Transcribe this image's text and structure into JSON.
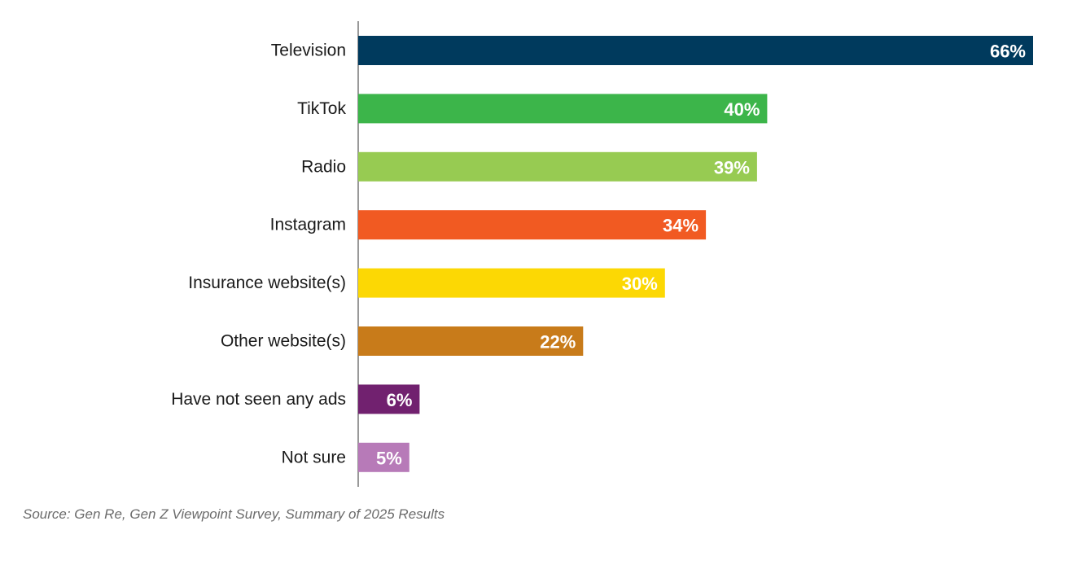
{
  "chart_data": {
    "type": "bar",
    "orientation": "horizontal",
    "categories": [
      "Television",
      "TikTok",
      "Radio",
      "Instagram",
      "Insurance website(s)",
      "Other website(s)",
      "Have not seen any ads",
      "Not sure"
    ],
    "values": [
      66,
      40,
      39,
      34,
      30,
      22,
      6,
      5
    ],
    "value_labels": [
      "66%",
      "40%",
      "39%",
      "34%",
      "30%",
      "22%",
      "6%",
      "5%"
    ],
    "colors": [
      "#003a5d",
      "#3cb54a",
      "#97cb52",
      "#f15a22",
      "#fcd804",
      "#c87b1a",
      "#71216f",
      "#b77ab8"
    ],
    "xlim": [
      0,
      66
    ],
    "grid": false,
    "legend": "none"
  },
  "source": "Source: Gen Re, Gen Z Viewpoint Survey, Summary of 2025 Results"
}
